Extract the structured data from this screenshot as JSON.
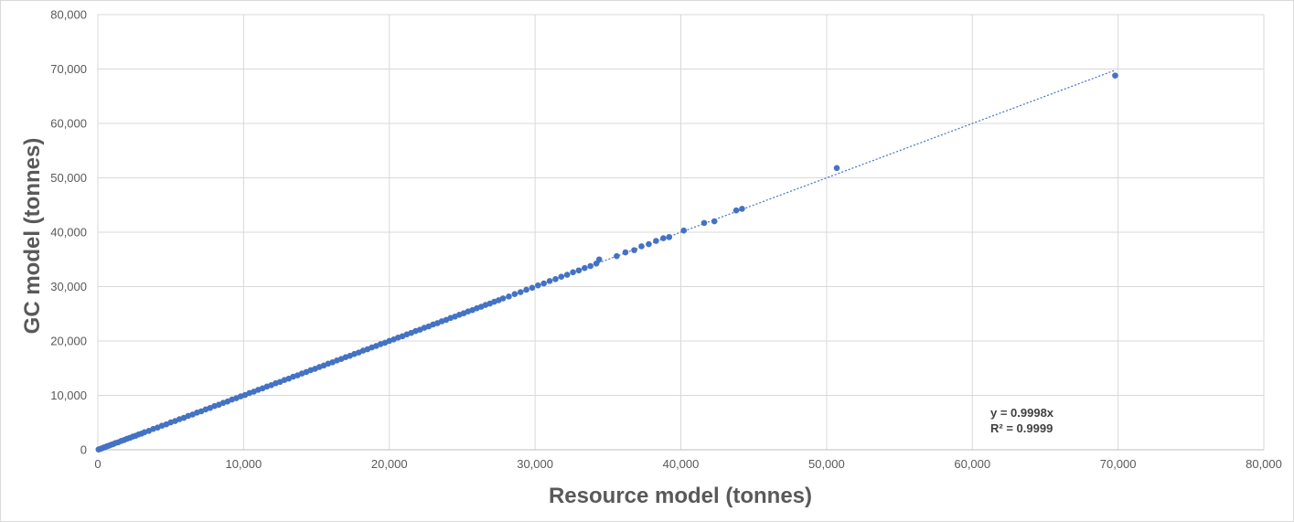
{
  "chart_data": {
    "type": "scatter",
    "title": "",
    "xlabel": "Resource model (tonnes)",
    "ylabel": "GC model (tonnes)",
    "xlim": [
      0,
      80000
    ],
    "ylim": [
      0,
      80000
    ],
    "x_ticks": [
      "0",
      "10,000",
      "20,000",
      "30,000",
      "40,000",
      "50,000",
      "60,000",
      "70,000",
      "80,000"
    ],
    "y_ticks": [
      "0",
      "10,000",
      "20,000",
      "30,000",
      "40,000",
      "50,000",
      "60,000",
      "70,000",
      "80,000"
    ],
    "grid": true,
    "legend": "none",
    "trendline": {
      "type": "linear-through-origin",
      "slope": 0.9998,
      "equation": "y = 0.9998x",
      "r2": "R² = 0.9999"
    },
    "series": [
      {
        "color": "#4472c4",
        "points": [
          [
            50,
            60
          ],
          [
            120,
            110
          ],
          [
            200,
            210
          ],
          [
            300,
            280
          ],
          [
            400,
            420
          ],
          [
            500,
            480
          ],
          [
            600,
            620
          ],
          [
            750,
            740
          ],
          [
            900,
            910
          ],
          [
            1050,
            1040
          ],
          [
            1200,
            1230
          ],
          [
            1400,
            1380
          ],
          [
            1600,
            1620
          ],
          [
            1800,
            1790
          ],
          [
            2000,
            2030
          ],
          [
            2200,
            2190
          ],
          [
            2400,
            2420
          ],
          [
            2600,
            2580
          ],
          [
            2800,
            2830
          ],
          [
            3000,
            2980
          ],
          [
            3200,
            3230
          ],
          [
            3500,
            3480
          ],
          [
            3800,
            3830
          ],
          [
            4100,
            4080
          ],
          [
            4400,
            4430
          ],
          [
            4700,
            4680
          ],
          [
            5000,
            5030
          ],
          [
            5300,
            5280
          ],
          [
            5600,
            5630
          ],
          [
            5900,
            5880
          ],
          [
            6200,
            6230
          ],
          [
            6500,
            6480
          ],
          [
            6800,
            6830
          ],
          [
            7100,
            7080
          ],
          [
            7400,
            7420
          ],
          [
            7700,
            7690
          ],
          [
            8000,
            8030
          ],
          [
            8300,
            8280
          ],
          [
            8600,
            8620
          ],
          [
            8900,
            8880
          ],
          [
            9200,
            9230
          ],
          [
            9500,
            9480
          ],
          [
            9800,
            9820
          ],
          [
            10100,
            10080
          ],
          [
            10400,
            10430
          ],
          [
            10700,
            10680
          ],
          [
            11000,
            11020
          ],
          [
            11300,
            11290
          ],
          [
            11600,
            11630
          ],
          [
            11900,
            11880
          ],
          [
            12200,
            12230
          ],
          [
            12500,
            12480
          ],
          [
            12800,
            12820
          ],
          [
            13100,
            13090
          ],
          [
            13400,
            13430
          ],
          [
            13700,
            13680
          ],
          [
            14000,
            14020
          ],
          [
            14300,
            14290
          ],
          [
            14600,
            14630
          ],
          [
            14900,
            14880
          ],
          [
            15200,
            15220
          ],
          [
            15500,
            15490
          ],
          [
            15800,
            15830
          ],
          [
            16100,
            16080
          ],
          [
            16400,
            16420
          ],
          [
            16700,
            16690
          ],
          [
            17000,
            17030
          ],
          [
            17300,
            17280
          ],
          [
            17600,
            17620
          ],
          [
            17900,
            17880
          ],
          [
            18200,
            18230
          ],
          [
            18500,
            18480
          ],
          [
            18800,
            18820
          ],
          [
            19100,
            19090
          ],
          [
            19400,
            19430
          ],
          [
            19700,
            19680
          ],
          [
            20000,
            20020
          ],
          [
            20300,
            20290
          ],
          [
            20600,
            20630
          ],
          [
            20900,
            20880
          ],
          [
            21200,
            21220
          ],
          [
            21500,
            21490
          ],
          [
            21800,
            21830
          ],
          [
            22100,
            22080
          ],
          [
            22400,
            22420
          ],
          [
            22700,
            22690
          ],
          [
            23000,
            23030
          ],
          [
            23300,
            23280
          ],
          [
            23600,
            23620
          ],
          [
            23900,
            23880
          ],
          [
            24200,
            24230
          ],
          [
            24500,
            24480
          ],
          [
            24800,
            24820
          ],
          [
            25100,
            25090
          ],
          [
            25400,
            25430
          ],
          [
            25700,
            25680
          ],
          [
            26000,
            26020
          ],
          [
            26300,
            26290
          ],
          [
            26600,
            26630
          ],
          [
            26900,
            26880
          ],
          [
            27200,
            27220
          ],
          [
            27500,
            27490
          ],
          [
            27800,
            27830
          ],
          [
            28200,
            28180
          ],
          [
            28600,
            28620
          ],
          [
            29000,
            28980
          ],
          [
            29400,
            29420
          ],
          [
            29800,
            29780
          ],
          [
            30200,
            30220
          ],
          [
            30600,
            30580
          ],
          [
            31000,
            31030
          ],
          [
            31400,
            31380
          ],
          [
            31800,
            31820
          ],
          [
            32200,
            32180
          ],
          [
            32600,
            32630
          ],
          [
            33000,
            32980
          ],
          [
            33400,
            33420
          ],
          [
            33800,
            33780
          ],
          [
            34200,
            34230
          ],
          [
            34400,
            35000
          ],
          [
            35600,
            35600
          ],
          [
            36200,
            36300
          ],
          [
            36800,
            36700
          ],
          [
            37300,
            37400
          ],
          [
            37800,
            37800
          ],
          [
            38300,
            38400
          ],
          [
            38800,
            38900
          ],
          [
            39200,
            39100
          ],
          [
            40200,
            40300
          ],
          [
            41600,
            41700
          ],
          [
            42300,
            42000
          ],
          [
            43800,
            44000
          ],
          [
            44200,
            44300
          ],
          [
            50700,
            51800
          ],
          [
            69800,
            68800
          ]
        ]
      }
    ]
  }
}
